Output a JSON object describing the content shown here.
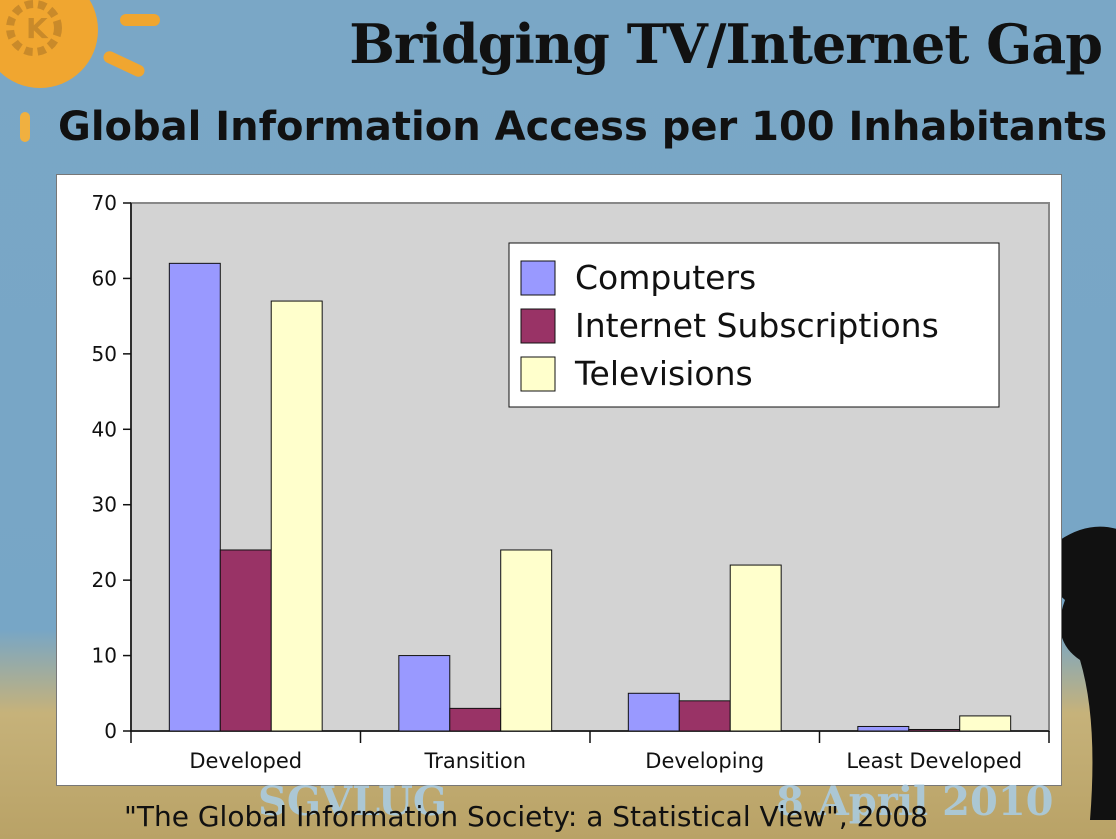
{
  "slide": {
    "title": "Bridging TV/Internet Gap",
    "subtitle": "Global Information Access per 100 Inhabitants",
    "source": "\"The Global Information Society: a Statistical View\", 2008",
    "watermark_left": "SGVLUG",
    "watermark_right": "8 April 2010",
    "logo_icon": "kde-gear-logo-icon",
    "decor_icons": [
      "sun-icon",
      "tree-silhouette-icon"
    ]
  },
  "chart_data": {
    "type": "bar",
    "categories": [
      "Developed",
      "Transition",
      "Developing",
      "Least Developed"
    ],
    "series": [
      {
        "name": "Computers",
        "color": "#9999ff",
        "values": [
          62,
          10,
          5,
          0.6
        ]
      },
      {
        "name": "Internet Subscriptions",
        "color": "#993366",
        "values": [
          24,
          3,
          4,
          0.2
        ]
      },
      {
        "name": "Televisions",
        "color": "#ffffcc",
        "values": [
          57,
          24,
          22,
          2
        ]
      }
    ],
    "title": "Global Information Access per 100 Inhabitants",
    "xlabel": "",
    "ylabel": "",
    "ylim": [
      0,
      70
    ],
    "yticks": [
      0,
      10,
      20,
      30,
      40,
      50,
      60,
      70
    ],
    "grid": false,
    "plot_background": "#d3d3d3",
    "legend_position": "top-right"
  }
}
